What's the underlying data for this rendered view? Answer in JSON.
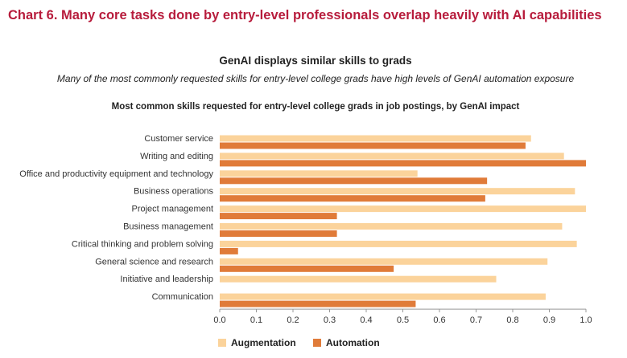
{
  "title": "Chart 6. Many core tasks done by entry-level professionals overlap heavily with AI capabilities",
  "subtitle": "GenAI displays similar skills to grads",
  "description": "Many of the most commonly requested skills for entry-level college grads have high levels of GenAI automation exposure",
  "chart_data": {
    "type": "bar",
    "orientation": "horizontal",
    "title": "Most common skills requested for entry-level college grads in job postings, by GenAI impact",
    "categories": [
      "Customer service",
      "Writing and editing",
      "Office and productivity equipment and technology",
      "Business operations",
      "Project management",
      "Business management",
      "Critical thinking and problem solving",
      "General science and research",
      "Initiative and leadership",
      "Communication"
    ],
    "series": [
      {
        "name": "Augmentation",
        "color": "#fbd39b",
        "values": [
          0.85,
          0.94,
          0.54,
          0.97,
          1.0,
          0.935,
          0.975,
          0.895,
          0.755,
          0.89
        ]
      },
      {
        "name": "Automation",
        "color": "#e07b39",
        "values": [
          0.835,
          1.0,
          0.73,
          0.725,
          0.32,
          0.32,
          0.05,
          0.475,
          0.0,
          0.535
        ]
      }
    ],
    "xlim": [
      0,
      1.0
    ],
    "xticks": [
      0.0,
      0.1,
      0.2,
      0.3,
      0.4,
      0.5,
      0.6,
      0.7,
      0.8,
      0.9,
      1.0
    ],
    "xtick_labels": [
      "0.0",
      "0.1",
      "0.2",
      "0.3",
      "0.4",
      "0.5",
      "0.6",
      "0.7",
      "0.8",
      "0.9",
      "1.0"
    ],
    "grid": false,
    "legend": "bottom-left"
  }
}
